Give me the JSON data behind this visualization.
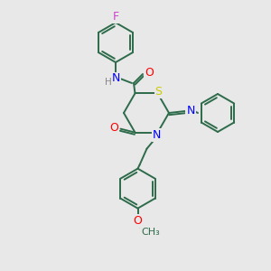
{
  "bg_color": "#e8e8e8",
  "bond_color": "#2d6b4a",
  "atom_colors": {
    "F": "#cc44cc",
    "N": "#0000ff",
    "O": "#ff0000",
    "S": "#cccc00",
    "H": "#888888",
    "C": "#2d6b4a"
  },
  "figsize": [
    3.0,
    3.0
  ],
  "dpi": 100
}
